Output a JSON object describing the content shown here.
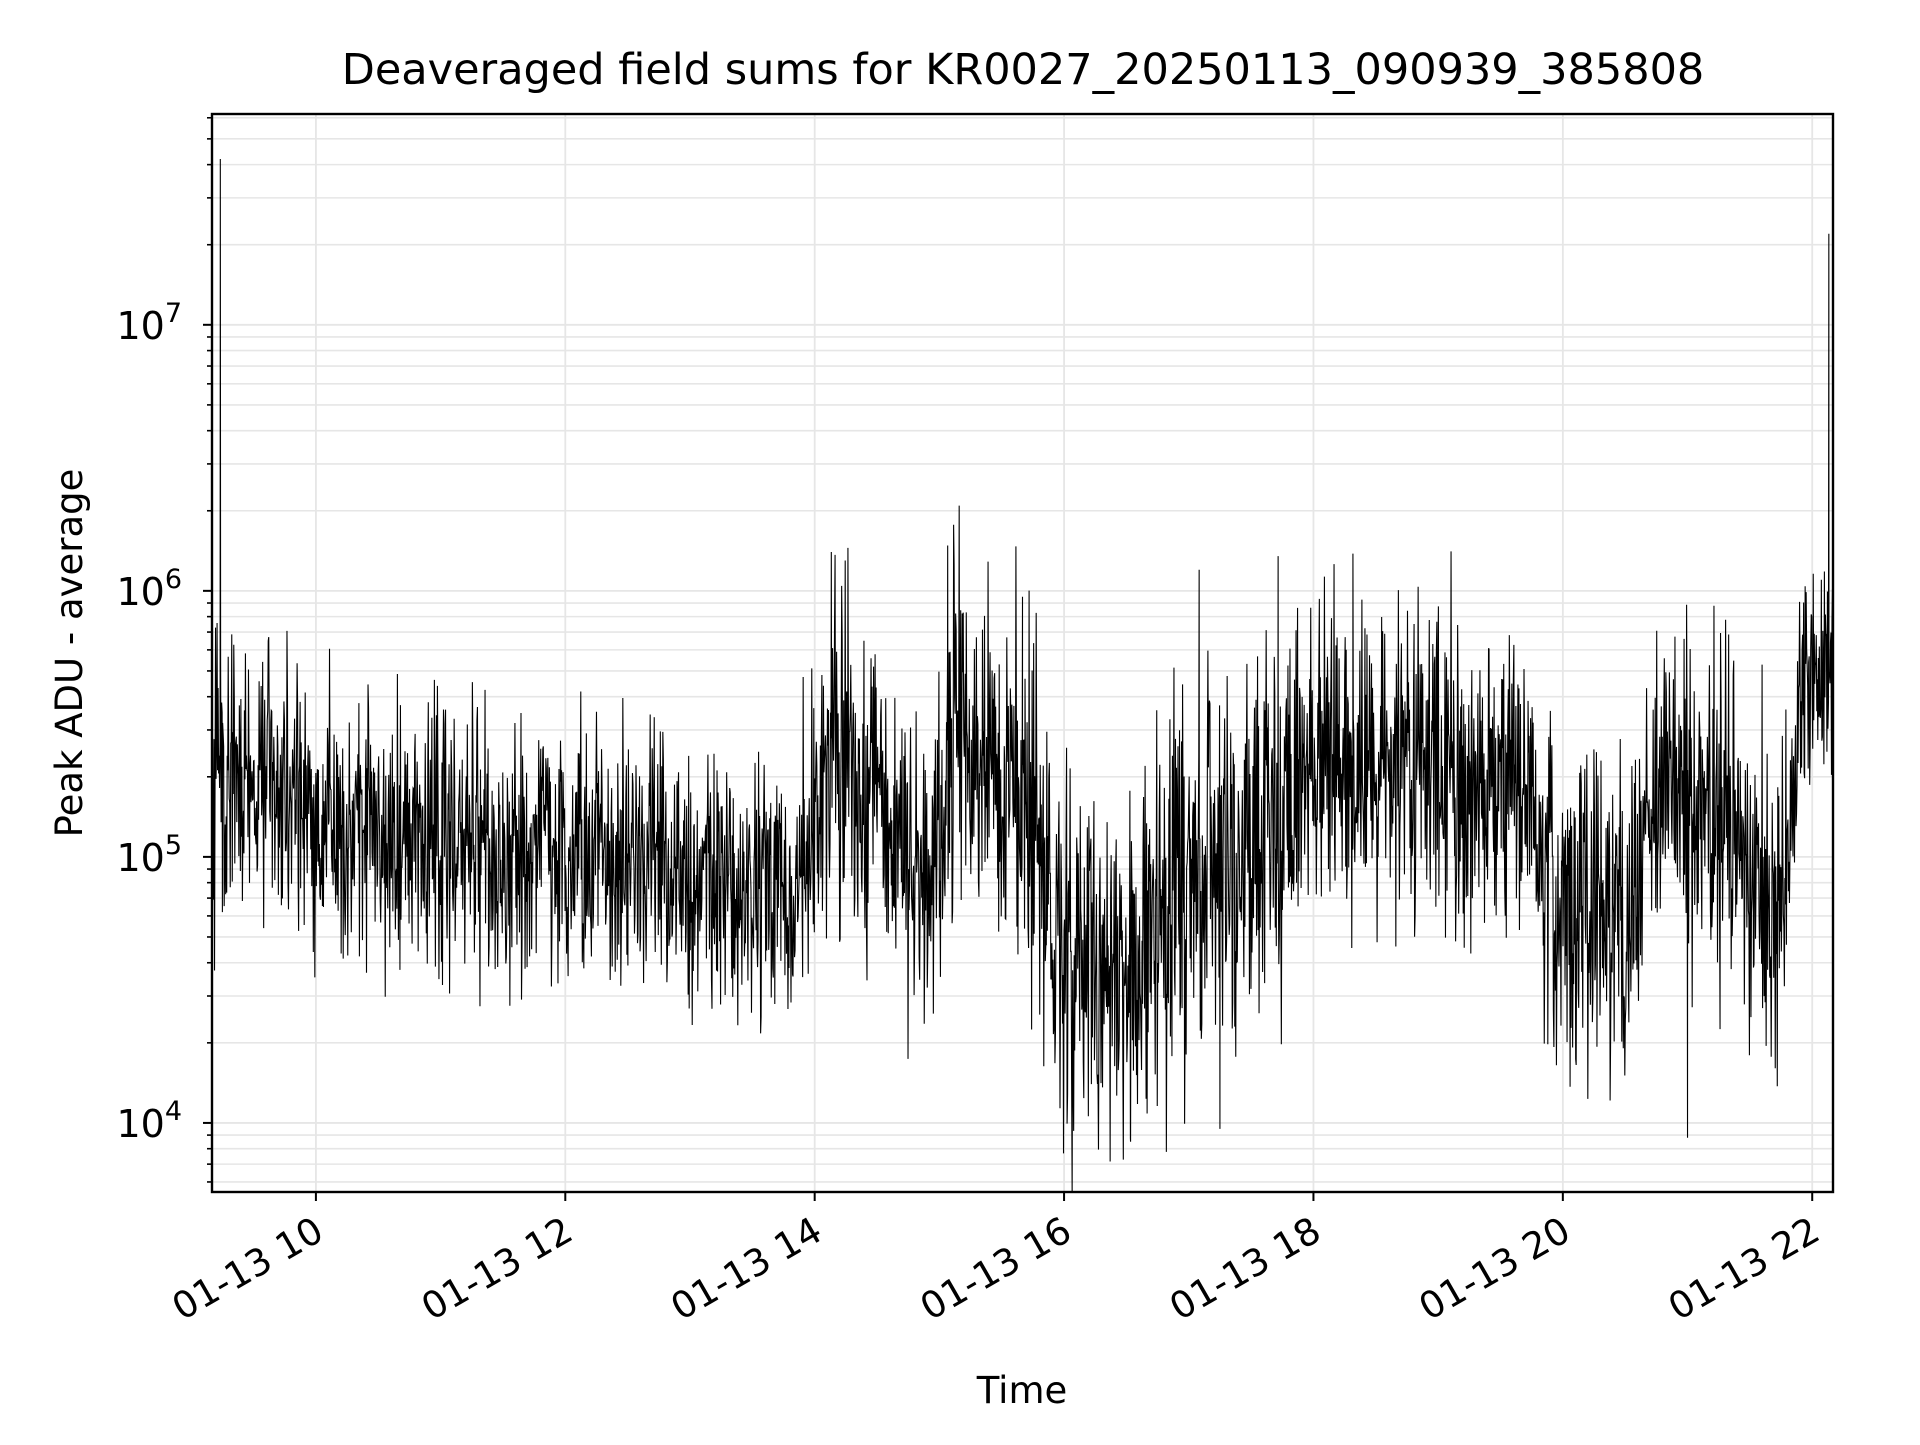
{
  "chart_data": {
    "type": "line",
    "title": "Deaveraged field sums for KR0027_20250113_090939_385808",
    "xlabel": "Time",
    "ylabel": "Peak ADU - average",
    "x_scale": "time",
    "y_scale": "log",
    "xlim": [
      "01-13 09:10",
      "01-13 22:10"
    ],
    "ylim": [
      5500,
      62000000
    ],
    "grid": {
      "major": true,
      "minor_y": true,
      "color": "#e6e6e6"
    },
    "x_ticks": [
      "01-13 10",
      "01-13 12",
      "01-13 14",
      "01-13 16",
      "01-13 18",
      "01-13 20",
      "01-13 22"
    ],
    "y_ticks": [
      {
        "base": "10",
        "exp": "4",
        "value": 10000
      },
      {
        "base": "10",
        "exp": "5",
        "value": 100000
      },
      {
        "base": "10",
        "exp": "6",
        "value": 1000000
      },
      {
        "base": "10",
        "exp": "7",
        "value": 10000000
      }
    ],
    "series": [
      {
        "color": "#000000",
        "envelope": [
          {
            "t": "01-13 09:10",
            "center": 230000,
            "spread": 0.28
          },
          {
            "t": "01-13 09:40",
            "center": 200000,
            "spread": 0.26
          },
          {
            "t": "01-13 10:00",
            "center": 130000,
            "spread": 0.26
          },
          {
            "t": "01-13 11:00",
            "center": 115000,
            "spread": 0.26
          },
          {
            "t": "01-13 12:00",
            "center": 110000,
            "spread": 0.26
          },
          {
            "t": "01-13 12:40",
            "center": 100000,
            "spread": 0.26
          },
          {
            "t": "01-13 13:00",
            "center": 72000,
            "spread": 0.24
          },
          {
            "t": "01-13 13:50",
            "center": 80000,
            "spread": 0.24
          },
          {
            "t": "01-13 14:10",
            "center": 260000,
            "spread": 0.3
          },
          {
            "t": "01-13 14:40",
            "center": 110000,
            "spread": 0.3
          },
          {
            "t": "01-13 14:55",
            "center": 70000,
            "spread": 0.32
          },
          {
            "t": "01-13 15:10",
            "center": 300000,
            "spread": 0.32
          },
          {
            "t": "01-13 15:30",
            "center": 200000,
            "spread": 0.32
          },
          {
            "t": "01-13 15:45",
            "center": 150000,
            "spread": 0.34
          },
          {
            "t": "01-13 15:55",
            "center": 40000,
            "spread": 0.34
          },
          {
            "t": "01-13 16:30",
            "center": 40000,
            "spread": 0.34
          },
          {
            "t": "01-13 17:00",
            "center": 80000,
            "spread": 0.34
          },
          {
            "t": "01-13 17:40",
            "center": 120000,
            "spread": 0.32
          },
          {
            "t": "01-13 18:00",
            "center": 220000,
            "spread": 0.3
          },
          {
            "t": "01-13 18:40",
            "center": 200000,
            "spread": 0.3
          },
          {
            "t": "01-13 19:20",
            "center": 190000,
            "spread": 0.3
          },
          {
            "t": "01-13 19:45",
            "center": 160000,
            "spread": 0.3
          },
          {
            "t": "01-13 20:00",
            "center": 60000,
            "spread": 0.32
          },
          {
            "t": "01-13 20:30",
            "center": 50000,
            "spread": 0.32
          },
          {
            "t": "01-13 20:45",
            "center": 220000,
            "spread": 0.3
          },
          {
            "t": "01-13 21:15",
            "center": 150000,
            "spread": 0.3
          },
          {
            "t": "01-13 21:30",
            "center": 90000,
            "spread": 0.32
          },
          {
            "t": "01-13 21:45",
            "center": 55000,
            "spread": 0.32
          },
          {
            "t": "01-13 21:55",
            "center": 420000,
            "spread": 0.22
          },
          {
            "t": "01-13 22:10",
            "center": 620000,
            "spread": 0.18
          }
        ],
        "spikes": [
          {
            "t": "01-13 09:14",
            "value": 42000000
          },
          {
            "t": "01-13 09:15",
            "value": 62000
          },
          {
            "t": "01-13 14:08",
            "value": 1400000
          },
          {
            "t": "01-13 14:16",
            "value": 1450000
          },
          {
            "t": "01-13 15:04",
            "value": 1480000
          },
          {
            "t": "01-13 15:40",
            "value": 950000
          },
          {
            "t": "01-13 16:32",
            "value": 8500
          },
          {
            "t": "01-13 17:05",
            "value": 1200000
          },
          {
            "t": "01-13 17:15",
            "value": 9500
          },
          {
            "t": "01-13 17:43",
            "value": 1350000
          },
          {
            "t": "01-13 18:19",
            "value": 1380000
          },
          {
            "t": "01-13 21:00",
            "value": 8800
          },
          {
            "t": "01-13 22:08",
            "value": 22000000
          }
        ]
      }
    ]
  }
}
